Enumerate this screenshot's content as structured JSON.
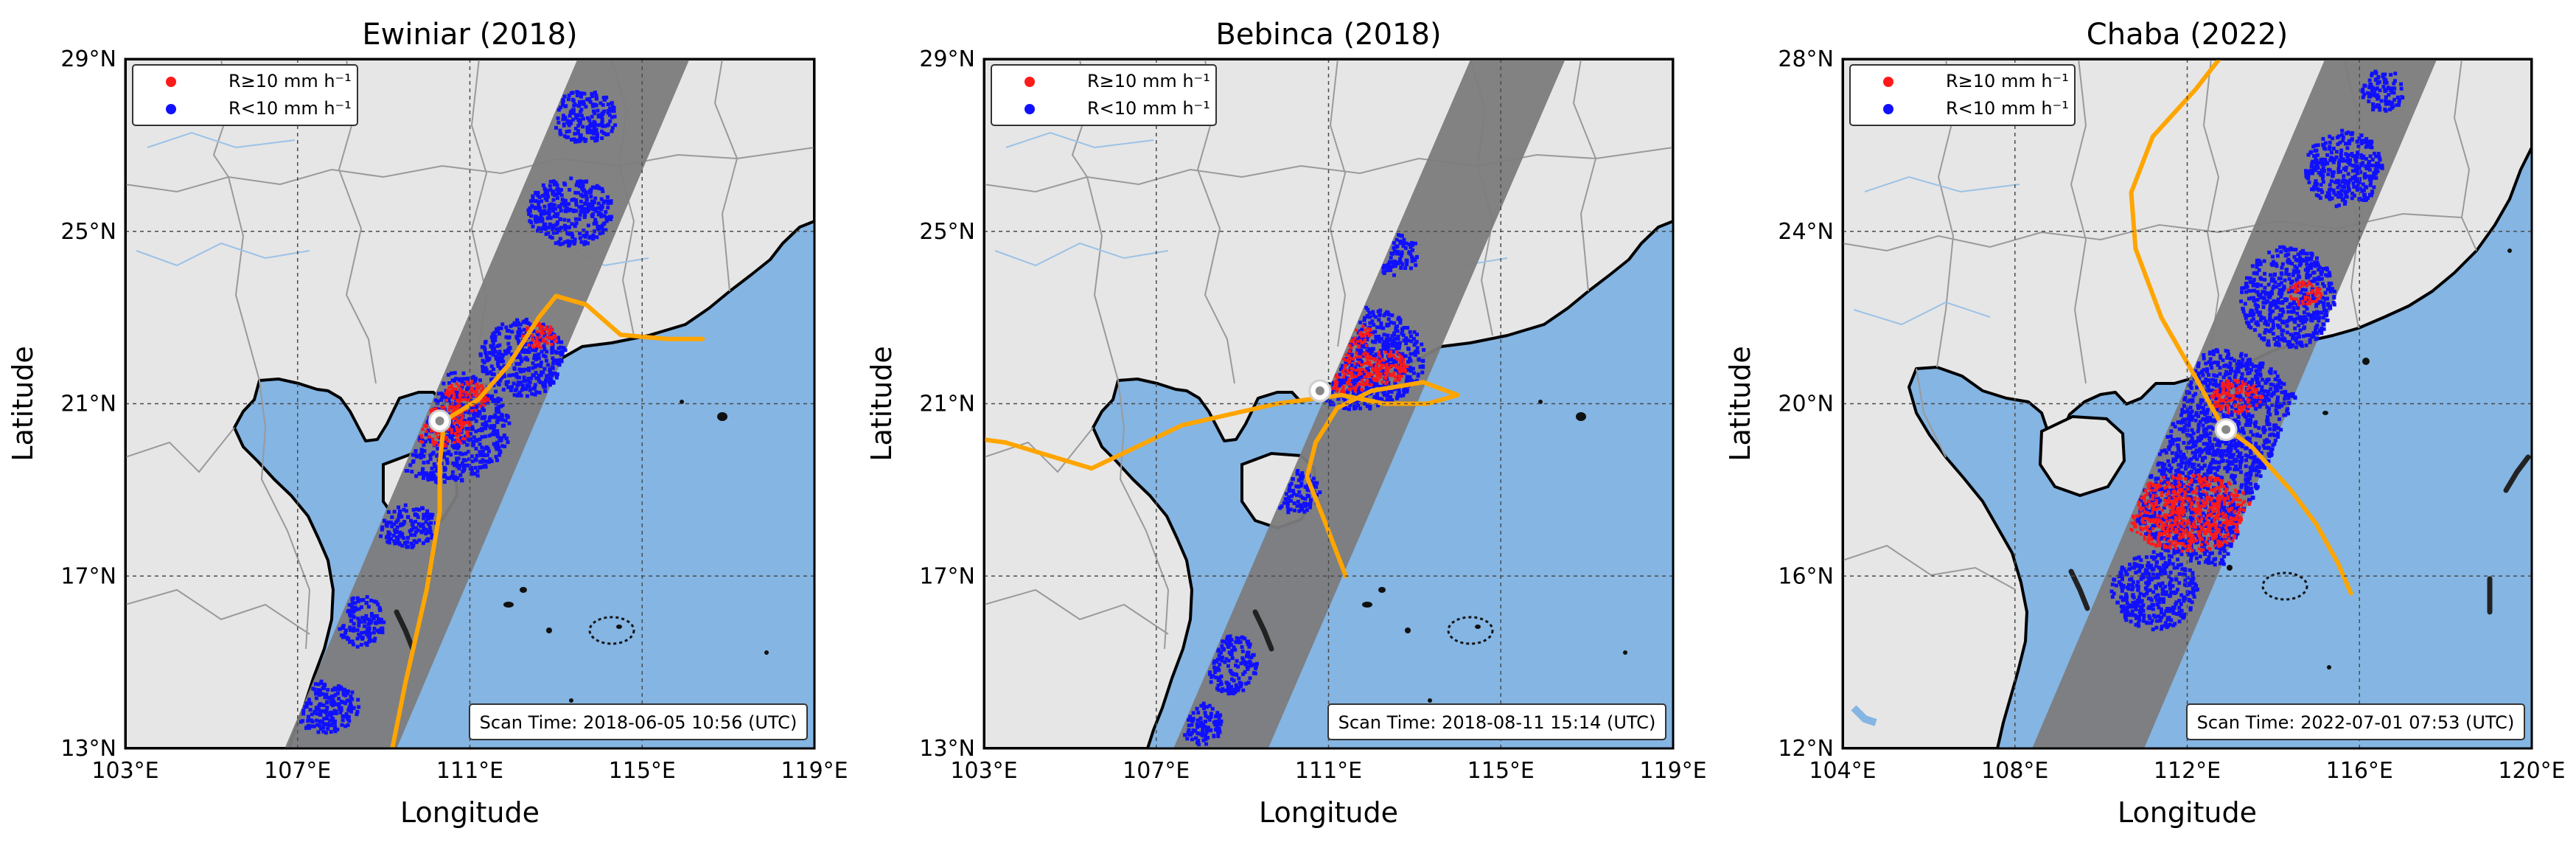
{
  "colors": {
    "ocean": "#84b5e3",
    "land": "#e6e6e6",
    "coast": "#000000",
    "border": "#9a9a9a",
    "river": "#9cc2e6",
    "swath": "#7c7c7c",
    "heavy_rain": "#ff1a1a",
    "light_rain": "#1010ff",
    "track": "#ffa500",
    "grid": "#4a4a4a"
  },
  "shared": {
    "xlabel": "Longitude",
    "ylabel": "Latitude",
    "legend": [
      {
        "label": "R≥10 mm h⁻¹",
        "color": "#ff1a1a"
      },
      {
        "label": "R<10 mm h⁻¹",
        "color": "#1010ff"
      }
    ],
    "legend_position": "top-left",
    "grid": true
  },
  "panels": [
    {
      "title": "Ewiniar  (2018)",
      "scan_time": "Scan Time: 2018-06-05 10:56 (UTC)",
      "xlim": [
        103,
        119
      ],
      "ylim": [
        13,
        29
      ],
      "xticks": [
        {
          "v": 103,
          "t": "103°E"
        },
        {
          "v": 107,
          "t": "107°E"
        },
        {
          "v": 111,
          "t": "111°E"
        },
        {
          "v": 115,
          "t": "115°E"
        },
        {
          "v": 119,
          "t": "119°E"
        }
      ],
      "yticks": [
        {
          "v": 13,
          "t": "13°N"
        },
        {
          "v": 17,
          "t": "17°N"
        },
        {
          "v": 21,
          "t": "21°N"
        },
        {
          "v": 25,
          "t": "25°N"
        },
        {
          "v": 29,
          "t": "29°N"
        }
      ],
      "swath": [
        [
          106.7,
          13
        ],
        [
          109.3,
          13
        ],
        [
          116.1,
          29
        ],
        [
          113.5,
          29
        ]
      ],
      "center": [
        110.3,
        20.6
      ],
      "heavy_rain_areas": [
        [
          110.3,
          20.5,
          0.7,
          0.5
        ],
        [
          110.9,
          21.2,
          0.5,
          0.4
        ],
        [
          112.6,
          22.6,
          0.4,
          0.3
        ]
      ],
      "light_rain_areas": [
        [
          110.4,
          20.5,
          1.5,
          1.3
        ],
        [
          112.2,
          22.1,
          1.0,
          0.9
        ],
        [
          113.3,
          25.5,
          1.0,
          0.8
        ],
        [
          113.6,
          27.7,
          0.8,
          0.6
        ],
        [
          109.5,
          18.2,
          0.7,
          0.5
        ],
        [
          108.4,
          16.0,
          0.6,
          0.6
        ],
        [
          107.6,
          14.0,
          0.8,
          0.6
        ]
      ],
      "track": [
        [
          109.0,
          12.0
        ],
        [
          109.5,
          14.5
        ],
        [
          110.0,
          16.7
        ],
        [
          110.3,
          18.5
        ],
        [
          110.3,
          19.6
        ],
        [
          110.4,
          20.6
        ],
        [
          111.2,
          21.1
        ],
        [
          111.9,
          21.9
        ],
        [
          112.6,
          23.0
        ],
        [
          113.0,
          23.5
        ],
        [
          113.7,
          23.3
        ],
        [
          114.5,
          22.6
        ],
        [
          115.6,
          22.5
        ],
        [
          116.4,
          22.5
        ]
      ]
    },
    {
      "title": "Bebinca  (2018)",
      "scan_time": "Scan Time: 2018-08-11 15:14 (UTC)",
      "xlim": [
        103,
        119
      ],
      "ylim": [
        13,
        29
      ],
      "xticks": [
        {
          "v": 103,
          "t": "103°E"
        },
        {
          "v": 107,
          "t": "107°E"
        },
        {
          "v": 111,
          "t": "111°E"
        },
        {
          "v": 115,
          "t": "115°E"
        },
        {
          "v": 119,
          "t": "119°E"
        }
      ],
      "yticks": [
        {
          "v": 13,
          "t": "13°N"
        },
        {
          "v": 17,
          "t": "17°N"
        },
        {
          "v": 21,
          "t": "21°N"
        },
        {
          "v": 25,
          "t": "25°N"
        },
        {
          "v": 29,
          "t": "29°N"
        }
      ],
      "swath": [
        [
          107.4,
          13
        ],
        [
          109.6,
          13
        ],
        [
          116.5,
          29
        ],
        [
          114.3,
          29
        ]
      ],
      "center": [
        110.8,
        21.3
      ],
      "heavy_rain_areas": [
        [
          111.4,
          21.8,
          0.8,
          0.5
        ],
        [
          112.3,
          21.9,
          0.5,
          0.4
        ],
        [
          111.6,
          22.6,
          0.4,
          0.3
        ]
      ],
      "light_rain_areas": [
        [
          111.6,
          22.1,
          1.6,
          1.2
        ],
        [
          112.3,
          24.5,
          0.8,
          0.5
        ],
        [
          110.2,
          19.0,
          0.6,
          0.5
        ],
        [
          108.7,
          15.0,
          0.6,
          0.7
        ],
        [
          108.0,
          13.6,
          0.5,
          0.5
        ]
      ],
      "track": [
        [
          102.0,
          20.3
        ],
        [
          103.5,
          20.1
        ],
        [
          105.5,
          19.5
        ],
        [
          107.6,
          20.5
        ],
        [
          109.8,
          21.0
        ],
        [
          111.3,
          21.2
        ],
        [
          112.3,
          21.0
        ],
        [
          113.3,
          21.0
        ],
        [
          114.0,
          21.2
        ],
        [
          113.2,
          21.5
        ],
        [
          112.0,
          21.3
        ],
        [
          111.2,
          20.9
        ],
        [
          110.7,
          20.1
        ],
        [
          110.5,
          19.3
        ],
        [
          110.9,
          18.3
        ],
        [
          111.4,
          17.0
        ]
      ]
    },
    {
      "title": "Chaba  (2022)",
      "scan_time": "Scan Time: 2022-07-01 07:53 (UTC)",
      "xlim": [
        104,
        120
      ],
      "ylim": [
        12,
        28
      ],
      "xticks": [
        {
          "v": 104,
          "t": "104°E"
        },
        {
          "v": 108,
          "t": "108°E"
        },
        {
          "v": 112,
          "t": "112°E"
        },
        {
          "v": 116,
          "t": "116°E"
        },
        {
          "v": 120,
          "t": "120°E"
        }
      ],
      "yticks": [
        {
          "v": 12,
          "t": "12°N"
        },
        {
          "v": 16,
          "t": "16°N"
        },
        {
          "v": 20,
          "t": "20°N"
        },
        {
          "v": 24,
          "t": "24°N"
        },
        {
          "v": 28,
          "t": "28°N"
        }
      ],
      "swath": [
        [
          108.4,
          12
        ],
        [
          111.0,
          12
        ],
        [
          117.8,
          28
        ],
        [
          115.2,
          28
        ]
      ],
      "center": [
        112.9,
        19.4
      ],
      "heavy_rain_areas": [
        [
          112.0,
          17.5,
          1.5,
          0.9
        ],
        [
          113.1,
          20.2,
          0.6,
          0.4
        ],
        [
          114.7,
          22.6,
          0.4,
          0.3
        ]
      ],
      "light_rain_areas": [
        [
          112.6,
          18.8,
          2.3,
          2.5
        ],
        [
          114.3,
          22.5,
          1.1,
          1.2
        ],
        [
          111.2,
          15.7,
          1.0,
          0.9
        ],
        [
          115.6,
          25.5,
          0.9,
          0.9
        ],
        [
          116.5,
          27.3,
          0.5,
          0.5
        ]
      ],
      "track": [
        [
          112.9,
          28.2
        ],
        [
          112.2,
          27.3
        ],
        [
          111.2,
          26.2
        ],
        [
          110.7,
          24.9
        ],
        [
          110.8,
          23.6
        ],
        [
          111.4,
          22.0
        ],
        [
          112.2,
          20.6
        ],
        [
          112.8,
          19.5
        ],
        [
          113.5,
          19.0
        ],
        [
          114.4,
          18.0
        ],
        [
          115.0,
          17.2
        ],
        [
          115.5,
          16.3
        ],
        [
          115.8,
          15.6
        ]
      ]
    }
  ]
}
